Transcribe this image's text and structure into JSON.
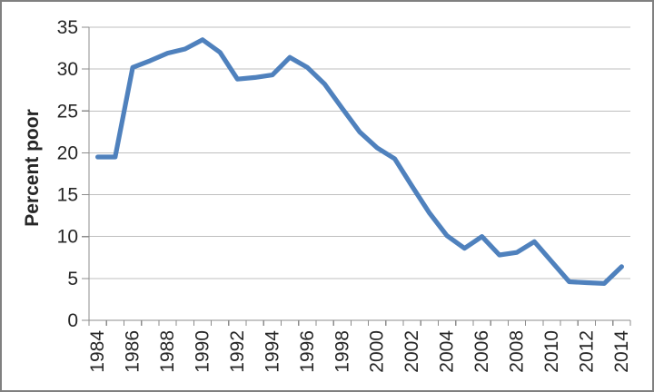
{
  "chart_data": {
    "type": "line",
    "title": "",
    "ylabel": "Percent poor",
    "xlabel": "",
    "x": [
      1984,
      1985,
      1986,
      1987,
      1988,
      1989,
      1990,
      1991,
      1992,
      1993,
      1994,
      1995,
      1996,
      1997,
      1998,
      1999,
      2000,
      2001,
      2002,
      2003,
      2004,
      2005,
      2006,
      2007,
      2008,
      2009,
      2010,
      2011,
      2012,
      2013,
      2014
    ],
    "values": [
      19.5,
      19.5,
      30.2,
      31.0,
      31.9,
      32.4,
      33.5,
      32.0,
      28.8,
      29.0,
      29.3,
      31.4,
      30.2,
      28.2,
      25.3,
      22.5,
      20.6,
      19.3,
      16.0,
      12.8,
      10.1,
      8.6,
      10.0,
      7.8,
      8.1,
      9.4,
      7.0,
      4.6,
      4.5,
      4.4,
      6.4
    ],
    "ylim": [
      0,
      35
    ],
    "ytick_step": 5,
    "ytick_labels": [
      "0",
      "5",
      "10",
      "15",
      "20",
      "25",
      "30",
      "35"
    ],
    "xtick_labels": [
      "1984",
      "1986",
      "1988",
      "1990",
      "1992",
      "1994",
      "1996",
      "1998",
      "2000",
      "2002",
      "2004",
      "2006",
      "2008",
      "2010",
      "2012",
      "2014"
    ],
    "xtick_label_every": 2,
    "grid": true,
    "legend": "none"
  },
  "style": {
    "line_color": "#4F81BD",
    "gridline_color": "#BFBFBF",
    "axis_color": "#8C8C8C",
    "tick_color": "#8C8C8C",
    "label_color": "#262626",
    "border_color": "#808080",
    "background": "#FFFFFF"
  }
}
